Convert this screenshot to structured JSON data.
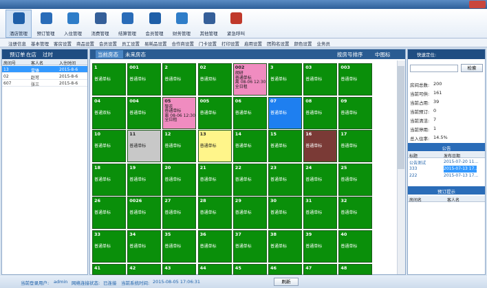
{
  "toolbar": [
    "酒店管理",
    "预订管理",
    "入住管理",
    "消费管理",
    "结算管理",
    "会员管理",
    "财务管理",
    "其他管理",
    "紧急呼叫"
  ],
  "submenu": [
    "注册信息",
    "基本管理",
    "客房设置",
    "商品设置",
    "会员设置",
    "员工设置",
    "易耗品设置",
    "合作商设置",
    "门卡设置",
    "打印设置",
    "启用设置",
    "团购名设置",
    "颜色设置",
    "业务员"
  ],
  "left_panel": {
    "tabs": [
      "预订单",
      "在店",
      "过时"
    ],
    "table": {
      "headers": [
        "房间号",
        "客人名",
        "入住时间"
      ],
      "rows": [
        [
          "13",
          "雷锋",
          "2015-8-6"
        ],
        [
          "02",
          "赵可",
          "2015-8-6"
        ],
        [
          "607",
          "张三",
          "2015-8-6"
        ]
      ]
    }
  },
  "center_panel": {
    "tabs": [
      "当前房态",
      "未来房态"
    ],
    "options": [
      "按房号排序",
      "中图标"
    ],
    "rooms": [
      {
        "number": "1",
        "lines": [
          "普通单标"
        ],
        "color": "#0a8f0a"
      },
      {
        "number": "001",
        "lines": [
          "普通单标"
        ],
        "color": "#0a8f0a"
      },
      {
        "number": "2",
        "lines": [
          "普通单标"
        ],
        "color": "#0a8f0a"
      },
      {
        "number": "02",
        "lines": [
          "普通双标"
        ],
        "color": "#0a8f0a"
      },
      {
        "number": "002",
        "lines": [
          "胡研",
          "普通单标",
          "离 08-06 12:30",
          "全日租"
        ],
        "color": "#f08cc0"
      },
      {
        "number": "3",
        "lines": [
          "普通单标"
        ],
        "color": "#0a8f0a"
      },
      {
        "number": "03",
        "lines": [
          "普通单标"
        ],
        "color": "#0a8f0a"
      },
      {
        "number": "003",
        "lines": [
          "普通单标"
        ],
        "color": "#0a8f0a"
      },
      {
        "number": "04",
        "lines": [
          "普通双标"
        ],
        "color": "#0a8f0a"
      },
      {
        "number": "004",
        "lines": [
          "普通单标"
        ],
        "color": "#0a8f0a"
      },
      {
        "number": "05",
        "lines": [
          "黎花",
          "普通单标",
          "离 08-06 12:30",
          "全日租"
        ],
        "color": "#f08cc0"
      },
      {
        "number": "005",
        "lines": [
          "普通单标"
        ],
        "color": "#0a8f0a"
      },
      {
        "number": "06",
        "lines": [
          "普通单标"
        ],
        "color": "#0a8f0a"
      },
      {
        "number": "07",
        "lines": [
          "普通单标"
        ],
        "color": "#1e7ff0"
      },
      {
        "number": "08",
        "lines": [
          "普通单标"
        ],
        "color": "#0a8f0a"
      },
      {
        "number": "09",
        "lines": [
          "普通单标"
        ],
        "color": "#0a8f0a"
      },
      {
        "number": "10",
        "lines": [
          "普通单标"
        ],
        "color": "#0a8f0a"
      },
      {
        "number": "11",
        "lines": [
          "普通单标"
        ],
        "color": "#c8c8c8"
      },
      {
        "number": "12",
        "lines": [
          "普通单标"
        ],
        "color": "#0a8f0a"
      },
      {
        "number": "13",
        "lines": [
          "普通单标"
        ],
        "color": "#fff58a"
      },
      {
        "number": "14",
        "lines": [
          "普通单标"
        ],
        "color": "#0a8f0a"
      },
      {
        "number": "15",
        "lines": [
          "普通单标"
        ],
        "color": "#0a8f0a"
      },
      {
        "number": "16",
        "lines": [
          "普通单标"
        ],
        "color": "#7a3a36"
      },
      {
        "number": "17",
        "lines": [
          "普通单标"
        ],
        "color": "#0a8f0a"
      },
      {
        "number": "18",
        "lines": [
          "普通单标"
        ],
        "color": "#0a8f0a"
      },
      {
        "number": "19",
        "lines": [
          "普通单标"
        ],
        "color": "#0a8f0a"
      },
      {
        "number": "20",
        "lines": [
          "普通单标"
        ],
        "color": "#0a8f0a"
      },
      {
        "number": "21",
        "lines": [
          "普通单标"
        ],
        "color": "#0a8f0a"
      },
      {
        "number": "22",
        "lines": [
          "普通单标"
        ],
        "color": "#0a8f0a"
      },
      {
        "number": "23",
        "lines": [
          "普通单标"
        ],
        "color": "#0a8f0a"
      },
      {
        "number": "24",
        "lines": [
          "普通单标"
        ],
        "color": "#0a8f0a"
      },
      {
        "number": "25",
        "lines": [
          "普通单标"
        ],
        "color": "#0a8f0a"
      },
      {
        "number": "26",
        "lines": [
          "普通单标"
        ],
        "color": "#0a8f0a"
      },
      {
        "number": "0026",
        "lines": [
          "普通单标"
        ],
        "color": "#0a8f0a"
      },
      {
        "number": "27",
        "lines": [
          "普通单标"
        ],
        "color": "#0a8f0a"
      },
      {
        "number": "28",
        "lines": [
          "普通单标"
        ],
        "color": "#0a8f0a"
      },
      {
        "number": "29",
        "lines": [
          "普通单标"
        ],
        "color": "#0a8f0a"
      },
      {
        "number": "30",
        "lines": [
          "普通单标"
        ],
        "color": "#0a8f0a"
      },
      {
        "number": "31",
        "lines": [
          "普通单标"
        ],
        "color": "#0a8f0a"
      },
      {
        "number": "32",
        "lines": [
          "普通单标"
        ],
        "color": "#0a8f0a"
      },
      {
        "number": "33",
        "lines": [
          "普通单标"
        ],
        "color": "#0a8f0a"
      },
      {
        "number": "34",
        "lines": [
          "普通单标"
        ],
        "color": "#0a8f0a"
      },
      {
        "number": "35",
        "lines": [
          "普通单标"
        ],
        "color": "#0a8f0a"
      },
      {
        "number": "36",
        "lines": [
          "普通单标"
        ],
        "color": "#0a8f0a"
      },
      {
        "number": "37",
        "lines": [
          "普通单标"
        ],
        "color": "#0a8f0a"
      },
      {
        "number": "38",
        "lines": [
          "普通单标"
        ],
        "color": "#0a8f0a"
      },
      {
        "number": "39",
        "lines": [
          "普通单标"
        ],
        "color": "#0a8f0a"
      },
      {
        "number": "40",
        "lines": [
          "普通单标"
        ],
        "color": "#0a8f0a"
      },
      {
        "number": "41",
        "lines": [],
        "color": "#0a8f0a"
      },
      {
        "number": "42",
        "lines": [],
        "color": "#0a8f0a"
      },
      {
        "number": "43",
        "lines": [],
        "color": "#0a8f0a"
      },
      {
        "number": "44",
        "lines": [],
        "color": "#0a8f0a"
      },
      {
        "number": "45",
        "lines": [],
        "color": "#0a8f0a"
      },
      {
        "number": "46",
        "lines": [],
        "color": "#0a8f0a"
      },
      {
        "number": "47",
        "lines": [],
        "color": "#0a8f0a"
      },
      {
        "number": "48",
        "lines": [],
        "color": "#0a8f0a"
      }
    ]
  },
  "right_panel": {
    "title": "快速定位:",
    "search_button": "检索",
    "stats": [
      {
        "label": "房间总数:",
        "value": "200"
      },
      {
        "label": "当前可供:",
        "value": "161"
      },
      {
        "label": "当前占用:",
        "value": "39"
      },
      {
        "label": "当前预订:",
        "value": "0"
      },
      {
        "label": "当前清洁:",
        "value": "7"
      },
      {
        "label": "当前停用:",
        "value": "1"
      },
      {
        "label": "总入住率:",
        "value": "14.5%"
      }
    ],
    "notice": {
      "title": "公告",
      "headers": [
        "标题",
        "发布日期"
      ],
      "rows": [
        [
          "公告测试",
          "2015-07-20 11..."
        ],
        [
          "333",
          "2015-07-13 17..."
        ],
        [
          "222",
          "2015-07-13 17..."
        ]
      ]
    },
    "booking_tip": {
      "title": "预订提示",
      "headers": [
        "房间名",
        "客人名"
      ]
    }
  },
  "status_bar": {
    "user_label": "当前登录用户:",
    "user": "admin",
    "net_label": "网络连接状态:",
    "net": "已连接",
    "time_label": "当前系统时间:",
    "time": "2015-08-05 17:06:31",
    "refresh": "刷新"
  }
}
